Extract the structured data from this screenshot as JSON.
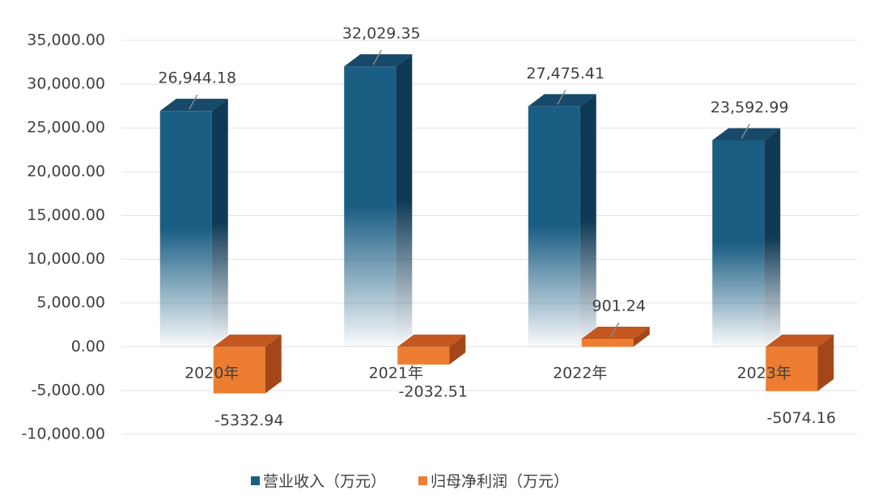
{
  "chart_data": {
    "type": "bar3d",
    "categories": [
      "2020年",
      "2021年",
      "2022年",
      "2023年"
    ],
    "series": [
      {
        "name": "营业收入（万元）",
        "color": "#1b5e84",
        "values": [
          26944.18,
          32029.35,
          27475.41,
          23592.99
        ],
        "value_labels": [
          "26,944.18",
          "32,029.35",
          "27,475.41",
          "23,592.99"
        ]
      },
      {
        "name": "归母净利润（万元）",
        "color": "#ed7d31",
        "values": [
          -5332.94,
          -2032.51,
          901.24,
          -5074.16
        ]
      }
    ],
    "ylim": [
      -10000,
      35000
    ],
    "yticks": [
      {
        "value": -10000,
        "label": "-10,000.00"
      },
      {
        "value": -5000,
        "label": "-5,000.00"
      },
      {
        "value": 0,
        "label": "0.00"
      },
      {
        "value": 5000,
        "label": "5,000.00"
      },
      {
        "value": 10000,
        "label": "10,000.00"
      },
      {
        "value": 15000,
        "label": "15,000.00"
      },
      {
        "value": 20000,
        "label": "20,000.00"
      },
      {
        "value": 25000,
        "label": "25,000.00"
      },
      {
        "value": 30000,
        "label": "30,000.00"
      },
      {
        "value": 35000,
        "label": "35,000.00"
      }
    ],
    "grid": true
  }
}
